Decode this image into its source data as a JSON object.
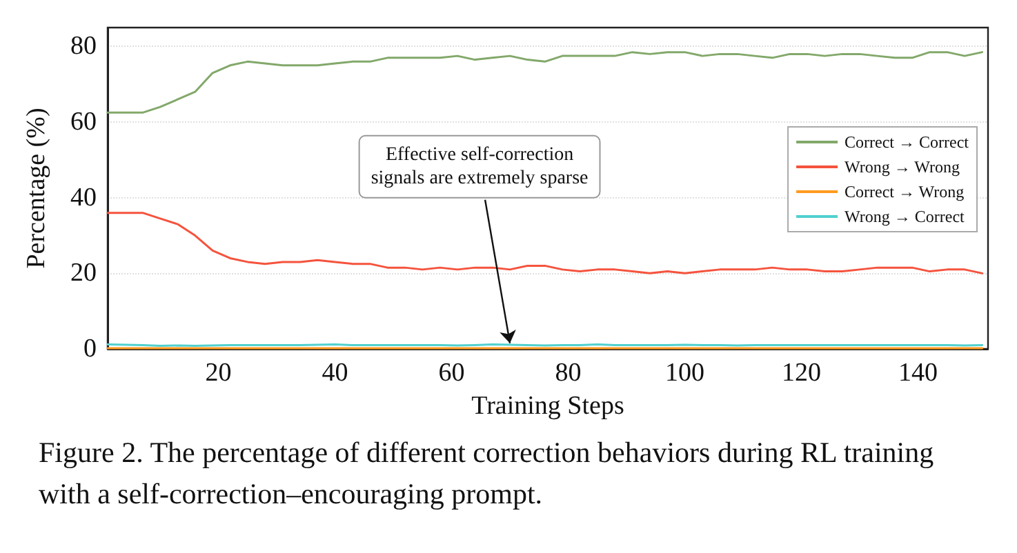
{
  "chart_data": {
    "type": "line",
    "xlabel": "Training Steps",
    "ylabel": "Percentage (%)",
    "x": [
      1,
      4,
      7,
      10,
      13,
      16,
      19,
      22,
      25,
      28,
      31,
      34,
      37,
      40,
      43,
      46,
      49,
      52,
      55,
      58,
      61,
      64,
      67,
      70,
      73,
      76,
      79,
      82,
      85,
      88,
      91,
      94,
      97,
      100,
      103,
      106,
      109,
      112,
      115,
      118,
      121,
      124,
      127,
      130,
      133,
      136,
      139,
      142,
      145,
      148,
      151
    ],
    "series": [
      {
        "name": "Correct → Correct",
        "color": "#82a86a",
        "values": [
          62.5,
          62.5,
          62.5,
          64,
          66,
          68,
          73,
          75,
          76,
          75.5,
          75,
          75,
          75,
          75.5,
          76,
          76,
          77,
          77,
          77,
          77,
          77.5,
          76.5,
          77,
          77.5,
          76.5,
          76,
          77.5,
          77.5,
          77.5,
          77.5,
          78.5,
          78,
          78.5,
          78.5,
          77.5,
          78,
          78,
          77.5,
          77,
          78,
          78,
          77.5,
          78,
          78,
          77.5,
          77,
          77,
          78.5,
          78.5,
          77.5,
          78.5
        ]
      },
      {
        "name": "Wrong → Wrong",
        "color": "#f5533d",
        "values": [
          36,
          36,
          36,
          34.5,
          33,
          30,
          26,
          24,
          23,
          22.5,
          23,
          23,
          23.5,
          23,
          22.5,
          22.5,
          21.5,
          21.5,
          21,
          21.5,
          21,
          21.5,
          21.5,
          21,
          22,
          22,
          21,
          20.5,
          21,
          21,
          20.5,
          20,
          20.5,
          20,
          20.5,
          21,
          21,
          21,
          21.5,
          21,
          21,
          20.5,
          20.5,
          21,
          21.5,
          21.5,
          21.5,
          20.5,
          21,
          21,
          20
        ]
      },
      {
        "name": "Correct → Wrong",
        "color": "#ff9a1f",
        "values": [
          0.2,
          0.2,
          0.2,
          0.2,
          0.2,
          0.2,
          0.2,
          0.2,
          0.2,
          0.2,
          0.2,
          0.2,
          0.2,
          0.2,
          0.2,
          0.2,
          0.2,
          0.2,
          0.2,
          0.2,
          0.2,
          0.2,
          0.2,
          0.2,
          0.2,
          0.2,
          0.2,
          0.2,
          0.2,
          0.2,
          0.2,
          0.2,
          0.2,
          0.2,
          0.2,
          0.2,
          0.2,
          0.2,
          0.2,
          0.2,
          0.2,
          0.2,
          0.2,
          0.2,
          0.2,
          0.2,
          0.2,
          0.2,
          0.2,
          0.2,
          0.2
        ]
      },
      {
        "name": "Wrong → Correct",
        "color": "#4fd1cf",
        "values": [
          1.2,
          1.1,
          1,
          0.8,
          0.9,
          0.8,
          0.9,
          1,
          1,
          1,
          1,
          1,
          1.1,
          1.2,
          1,
          1,
          1,
          1,
          1,
          1,
          0.9,
          1,
          1.2,
          1.1,
          1,
          0.9,
          1,
          1,
          1.2,
          1,
          1,
          1,
          1,
          1.1,
          1,
          1,
          0.9,
          1,
          1,
          1,
          1,
          1,
          1,
          1,
          1,
          1,
          1,
          1,
          1,
          0.9,
          1
        ]
      }
    ],
    "xlim": [
      1,
      152
    ],
    "xticks": [
      20,
      40,
      60,
      80,
      100,
      120,
      140
    ],
    "ylim": [
      0,
      85
    ],
    "yticks": [
      0,
      20,
      40,
      60,
      80
    ],
    "grid": "y",
    "legend": "right",
    "marker": "none",
    "line_style": "solid",
    "annotations": [
      {
        "text": "Effective self-correction\nsignals are extremely sparse",
        "x": 70,
        "y": 1.5
      },
      "Figure 2. The percentage of different correction behaviors during RL training with a self-correction–encouraging prompt."
    ]
  }
}
